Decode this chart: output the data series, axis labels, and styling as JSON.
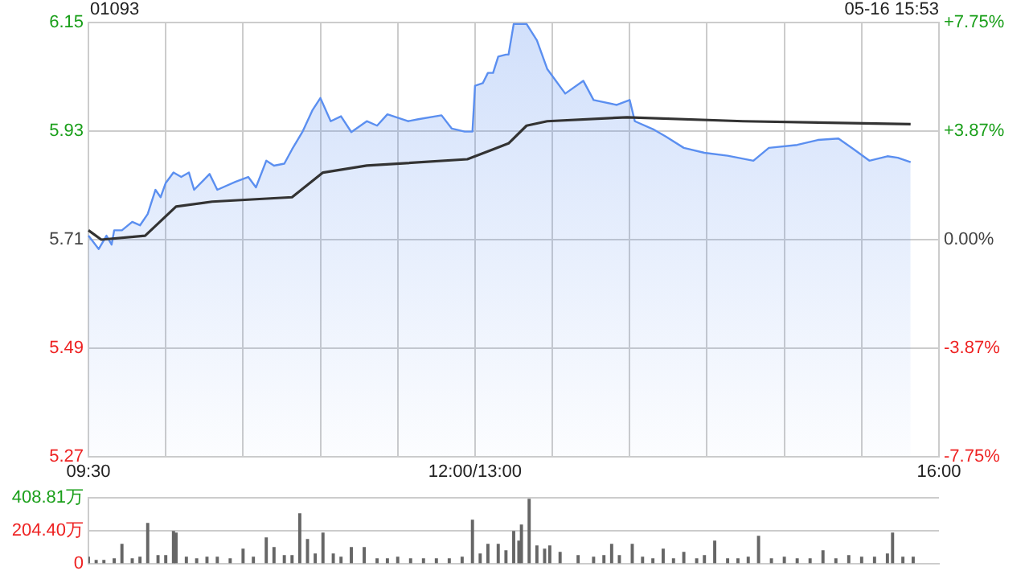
{
  "chart_data": [
    {
      "type": "area",
      "title": "01093",
      "subtitle": "05-16 15:53",
      "categories": [
        "09:30",
        null,
        null,
        null,
        null,
        null,
        null,
        null,
        null,
        null,
        null,
        null,
        null,
        null,
        null,
        null,
        null,
        null,
        null,
        null,
        null,
        null,
        null,
        null,
        null,
        null,
        null,
        null,
        null,
        null,
        null,
        null,
        null,
        null,
        null,
        null,
        null,
        null,
        null,
        null,
        null,
        null,
        null,
        null,
        null,
        null,
        null,
        null,
        null,
        null,
        null,
        null,
        null,
        null,
        null,
        null,
        null,
        null,
        null,
        null,
        null,
        null,
        null,
        null,
        null,
        null,
        null,
        null,
        null,
        null,
        null,
        null,
        null,
        null,
        null,
        null,
        null,
        null,
        null,
        null,
        null,
        null,
        null,
        null,
        null,
        null,
        null,
        null,
        null,
        null,
        null,
        null,
        null,
        null,
        null,
        null,
        null,
        null,
        null,
        null,
        null,
        null,
        null,
        null,
        null,
        null,
        null,
        null,
        null,
        null,
        null,
        null,
        null,
        null,
        null,
        null,
        null,
        null,
        null,
        null,
        null,
        null,
        null,
        null,
        null,
        null,
        null,
        null,
        null,
        null,
        null,
        null,
        null,
        null,
        null,
        null,
        null,
        null,
        null,
        null,
        null,
        null,
        null,
        null,
        null,
        null,
        null,
        null,
        null,
        null,
        "12:00/13:00",
        null,
        null,
        null,
        null,
        null,
        null,
        null,
        null,
        null,
        null,
        null,
        null,
        null,
        null,
        null,
        null,
        null,
        null,
        null,
        null,
        null,
        null,
        null,
        null,
        null,
        null,
        null,
        null,
        null,
        null,
        null,
        null,
        null,
        null,
        null,
        null,
        null,
        null,
        null,
        null,
        null,
        null,
        null,
        null,
        null,
        null,
        null,
        null,
        null,
        null,
        null,
        null,
        null,
        null,
        null,
        null,
        null,
        null,
        null,
        null,
        null,
        null,
        null,
        null,
        null,
        null,
        null,
        null,
        null,
        null,
        null,
        null,
        null,
        null,
        null,
        null,
        null,
        null,
        null,
        null,
        null,
        null,
        null,
        null,
        null,
        null,
        null,
        null,
        null,
        null,
        null,
        null,
        null,
        null,
        null,
        null,
        null,
        null,
        null,
        null,
        null,
        null,
        null,
        null,
        null,
        null,
        null,
        null,
        null,
        null,
        null,
        null,
        null,
        null,
        null,
        null,
        null,
        null,
        null,
        null,
        null,
        null,
        null,
        null,
        null,
        null,
        null,
        null,
        null,
        null,
        null,
        null,
        null,
        null,
        null,
        null,
        null,
        null,
        null,
        null,
        null,
        null,
        null,
        null,
        null,
        null,
        null,
        null,
        null,
        null,
        null,
        null,
        null,
        null,
        null,
        null,
        null,
        null,
        null,
        null,
        null,
        null,
        null,
        null,
        null,
        null,
        null,
        null,
        null,
        null,
        null,
        null,
        null,
        null,
        null,
        null,
        null,
        null,
        null,
        "16:00"
      ],
      "ylim": [
        5.27,
        6.15
      ],
      "yticks": [
        5.27,
        5.49,
        5.71,
        5.93,
        6.15
      ],
      "y2lim": [
        -7.75,
        7.75
      ],
      "y2ticks": [
        {
          "value": -7.75,
          "label": "-7.75%"
        },
        {
          "value": -3.87,
          "label": "-3.87%"
        },
        {
          "value": 0,
          "label": "0.00%"
        },
        {
          "value": 3.87,
          "label": "+3.87%"
        },
        {
          "value": 7.75,
          "label": "+7.75%"
        }
      ],
      "grid": true,
      "series": [
        {
          "color": "#5b8ff0",
          "values": [
            5.718,
            null,
            null,
            null,
            5.691,
            null,
            null,
            5.718,
            null,
            5.7,
            5.729,
            null,
            null,
            5.729,
            null,
            null,
            null,
            5.746,
            null,
            null,
            5.739,
            null,
            null,
            5.762,
            null,
            null,
            5.811,
            null,
            5.796,
            null,
            5.825,
            null,
            null,
            5.846,
            null,
            null,
            5.837,
            null,
            null,
            5.846,
            null,
            5.811,
            null,
            null,
            null,
            null,
            null,
            5.843,
            null,
            null,
            5.811,
            null,
            null,
            null,
            null,
            null,
            null,
            5.827,
            null,
            null,
            null,
            null,
            5.837,
            null,
            null,
            5.816,
            null,
            null,
            null,
            5.87,
            null,
            null,
            5.86,
            null,
            null,
            null,
            5.864,
            null,
            null,
            5.893,
            null,
            null,
            null,
            5.928,
            null,
            null,
            null,
            5.973,
            null,
            null,
            5.997,
            null,
            null,
            null,
            5.95,
            null,
            null,
            null,
            5.96,
            null,
            null,
            null,
            5.928,
            null,
            null,
            null,
            null,
            null,
            5.95,
            null,
            null,
            null,
            5.941,
            null,
            null,
            null,
            5.964,
            null,
            null,
            null,
            null,
            null,
            null,
            null,
            5.95,
            null,
            null,
            null,
            5.954,
            null,
            null,
            null,
            null,
            null,
            null,
            null,
            null,
            5.962,
            null,
            null,
            null,
            5.935,
            null,
            null,
            null,
            null,
            5.929,
            null,
            null,
            5.929,
            6.022,
            null,
            null,
            6.027,
            null,
            6.048,
            null,
            6.048,
            null,
            6.081,
            null,
            null,
            6.085,
            6.085,
            null,
            6.147,
            null,
            null,
            null,
            null,
            6.147,
            null,
            null,
            null,
            6.114,
            null,
            null,
            null,
            6.056,
            null,
            null,
            null,
            null,
            null,
            null,
            6.006,
            null,
            null,
            null,
            null,
            null,
            null,
            6.032,
            null,
            null,
            null,
            5.993,
            null,
            null,
            null,
            null,
            null,
            null,
            null,
            null,
            5.983,
            null,
            null,
            null,
            null,
            5.993,
            null,
            5.95,
            null,
            null,
            null,
            null,
            null,
            null,
            5.934,
            null,
            null,
            null,
            null,
            5.919,
            null,
            null,
            null,
            null,
            null,
            null,
            5.896,
            null,
            null,
            null,
            null,
            null,
            null,
            null,
            5.886,
            null,
            null,
            null,
            null,
            null,
            null,
            null,
            null,
            5.88,
            null,
            null,
            null,
            null,
            null,
            null,
            null,
            null,
            null,
            5.87,
            null,
            null,
            null,
            null,
            null,
            5.896,
            null,
            null,
            null,
            null,
            null,
            null,
            null,
            null,
            null,
            null,
            5.902,
            null,
            null,
            null,
            null,
            null,
            null,
            null,
            5.912,
            null,
            null,
            null,
            null,
            null,
            null,
            null,
            5.915,
            null,
            null,
            null,
            null,
            null,
            5.893,
            null,
            null,
            null,
            null,
            null,
            5.87,
            null,
            null,
            null,
            null,
            null,
            null,
            5.879,
            null,
            null,
            null,
            5.876,
            null,
            null,
            null,
            null,
            5.867,
            null,
            null,
            null,
            null,
            null,
            null,
            null,
            null,
            null,
            null,
            null
          ]
        },
        {
          "type": "line",
          "color": "#333333",
          "values": [
            5.729,
            null,
            null,
            null,
            null,
            5.71,
            null,
            null,
            null,
            null,
            null,
            null,
            null,
            null,
            null,
            null,
            null,
            null,
            null,
            null,
            null,
            null,
            5.718,
            null,
            null,
            null,
            null,
            null,
            null,
            null,
            null,
            null,
            null,
            null,
            5.777,
            null,
            null,
            null,
            null,
            null,
            null,
            null,
            null,
            null,
            null,
            null,
            null,
            null,
            5.787,
            null,
            null,
            null,
            null,
            null,
            null,
            null,
            null,
            null,
            null,
            null,
            null,
            null,
            null,
            null,
            null,
            null,
            null,
            null,
            null,
            null,
            null,
            null,
            null,
            null,
            null,
            null,
            null,
            null,
            null,
            5.796,
            null,
            null,
            null,
            null,
            null,
            null,
            null,
            null,
            null,
            null,
            null,
            5.846,
            null,
            null,
            null,
            null,
            null,
            null,
            null,
            null,
            null,
            null,
            null,
            null,
            null,
            null,
            null,
            null,
            5.86,
            null,
            null,
            null,
            null,
            null,
            null,
            null,
            null,
            null,
            null,
            null,
            null,
            null,
            null,
            null,
            null,
            null,
            null,
            null,
            null,
            null,
            null,
            null,
            null,
            null,
            null,
            null,
            null,
            null,
            null,
            null,
            null,
            null,
            null,
            null,
            null,
            null,
            null,
            5.873,
            null,
            null,
            null,
            null,
            null,
            null,
            null,
            null,
            null,
            5.893,
            null,
            null,
            null,
            null,
            null,
            5.905,
            null,
            null,
            null,
            null,
            null,
            null,
            5.941,
            null,
            null,
            null,
            null,
            null,
            null,
            null,
            5.95,
            null,
            null,
            null,
            null,
            null,
            null,
            null,
            null,
            null,
            null,
            null,
            null,
            null,
            null,
            null,
            null,
            null,
            null,
            null,
            null,
            null,
            null,
            null,
            null,
            null,
            null,
            null,
            null,
            null,
            null,
            5.958,
            null,
            null,
            null,
            null,
            null,
            null,
            null,
            null,
            null,
            null,
            null,
            null,
            null,
            null,
            null,
            null,
            null,
            null,
            null,
            null,
            null,
            null,
            null,
            null,
            null,
            null,
            null,
            null,
            null,
            null,
            null,
            null,
            null,
            null,
            null,
            null,
            null,
            null,
            null,
            null,
            null,
            null,
            null,
            null,
            5.95,
            null,
            null,
            null,
            null,
            null,
            null,
            null,
            null,
            null,
            null,
            null,
            null,
            null,
            null,
            null,
            null,
            null,
            null,
            null,
            null,
            null,
            null,
            null,
            null,
            null,
            null,
            null,
            null,
            null,
            null,
            null,
            null,
            null,
            null,
            null,
            null,
            null,
            null,
            null,
            null,
            null,
            null,
            null,
            null,
            null,
            null,
            null,
            null,
            null,
            null,
            null,
            null,
            null,
            null,
            null,
            null,
            null,
            null,
            null,
            null,
            null,
            null,
            null,
            null,
            5.944,
            null,
            null,
            null,
            null,
            null,
            null,
            null,
            null,
            null,
            null,
            null
          ]
        }
      ]
    },
    {
      "type": "bar",
      "color": "#666666",
      "ylim": [
        0,
        408.81
      ],
      "yticks": [
        0,
        {
          "value": 204.4,
          "label": "204.40万"
        },
        {
          "value": 408.81,
          "label": "408.81万"
        }
      ],
      "grid": "y",
      "tick_labels": "y",
      "categories": [
        null,
        null,
        null,
        null,
        null,
        null,
        null,
        null,
        null,
        null,
        null,
        null,
        null,
        null,
        null,
        null,
        null,
        null,
        null,
        null,
        null,
        null,
        null,
        null,
        null,
        null,
        null,
        null,
        null,
        null,
        null,
        null,
        null,
        null,
        null,
        null,
        null,
        null,
        null,
        null,
        null,
        null,
        null,
        null,
        null,
        null,
        null,
        null,
        null,
        null,
        null,
        null,
        null,
        null,
        null,
        null,
        null,
        null,
        null,
        null,
        null,
        null,
        null,
        null,
        null,
        null,
        null,
        null,
        null,
        null,
        null,
        null,
        null,
        null,
        null,
        null,
        null,
        null,
        null,
        null,
        null,
        null,
        null,
        null,
        null,
        null,
        null,
        null,
        null,
        null,
        null,
        null,
        null,
        null,
        null,
        null,
        null,
        null,
        null,
        null,
        null,
        null,
        null,
        null,
        null,
        null,
        null,
        null,
        null,
        null,
        null,
        null,
        null,
        null,
        null,
        null,
        null,
        null,
        null,
        null,
        null,
        null,
        null,
        null,
        null,
        null,
        null,
        null,
        null,
        null,
        null,
        null,
        null,
        null,
        null,
        null,
        null,
        null,
        null,
        null,
        null,
        null,
        null,
        null,
        null,
        null,
        null,
        null,
        null,
        null,
        null,
        null,
        null,
        null,
        null,
        null,
        null,
        null,
        null,
        null,
        null,
        null,
        null,
        null,
        null,
        null,
        null,
        null,
        null,
        null,
        null,
        null,
        null,
        null,
        null,
        null,
        null,
        null,
        null,
        null,
        null,
        null,
        null,
        null,
        null,
        null,
        null,
        null,
        null,
        null,
        null,
        null,
        null,
        null,
        null,
        null,
        null,
        null,
        null,
        null,
        null,
        null,
        null,
        null,
        null,
        null,
        null,
        null,
        null,
        null,
        null,
        null,
        null,
        null,
        null,
        null,
        null,
        null,
        null,
        null,
        null,
        null,
        null,
        null,
        null,
        null,
        null,
        null,
        null,
        null,
        null,
        null,
        null,
        null,
        null,
        null,
        null,
        null,
        null,
        null,
        null,
        null,
        null,
        null,
        null,
        null,
        null,
        null,
        null,
        null,
        null,
        null,
        null,
        null,
        null,
        null,
        null,
        null,
        null,
        null,
        null,
        null,
        null,
        null,
        null,
        null,
        null,
        null,
        null,
        null,
        null,
        null,
        null,
        null,
        null,
        null,
        null,
        null,
        null,
        null,
        null,
        null,
        null,
        null,
        null,
        null,
        null,
        null,
        null,
        null,
        null,
        null,
        null,
        null,
        null,
        null,
        null,
        null,
        null,
        null,
        null,
        null,
        null,
        null,
        null,
        null,
        null,
        null,
        null,
        null,
        null,
        null,
        null,
        null,
        null,
        null,
        null,
        null,
        null,
        null,
        null,
        null,
        null,
        null,
        null,
        null,
        null,
        null,
        null,
        null,
        null
      ],
      "values": [
        40,
        null,
        null,
        20,
        null,
        null,
        20,
        null,
        null,
        null,
        30,
        null,
        null,
        120,
        null,
        null,
        null,
        30,
        null,
        null,
        40,
        null,
        null,
        250,
        null,
        null,
        null,
        50,
        null,
        null,
        50,
        null,
        null,
        200,
        190,
        null,
        null,
        null,
        40,
        null,
        null,
        null,
        30,
        null,
        null,
        null,
        40,
        null,
        null,
        null,
        40,
        null,
        null,
        null,
        null,
        30,
        null,
        null,
        null,
        null,
        90,
        null,
        null,
        null,
        40,
        null,
        null,
        null,
        null,
        160,
        null,
        null,
        100,
        null,
        null,
        null,
        50,
        null,
        null,
        50,
        null,
        null,
        310,
        null,
        null,
        150,
        null,
        null,
        60,
        null,
        null,
        190,
        null,
        null,
        null,
        60,
        null,
        null,
        40,
        null,
        null,
        null,
        100,
        null,
        null,
        null,
        null,
        100,
        null,
        null,
        null,
        null,
        30,
        null,
        null,
        null,
        30,
        null,
        null,
        null,
        40,
        null,
        null,
        null,
        null,
        30,
        null,
        null,
        null,
        null,
        30,
        null,
        null,
        null,
        null,
        30,
        null,
        null,
        null,
        null,
        30,
        null,
        null,
        null,
        null,
        40,
        null,
        null,
        null,
        270,
        null,
        null,
        60,
        null,
        null,
        120,
        null,
        null,
        null,
        120,
        null,
        null,
        80,
        null,
        null,
        200,
        null,
        140,
        240,
        null,
        null,
        400,
        null,
        null,
        110,
        null,
        null,
        90,
        null,
        110,
        null,
        null,
        null,
        70,
        null,
        null,
        null,
        null,
        null,
        null,
        50,
        null,
        null,
        null,
        null,
        null,
        40,
        null,
        null,
        null,
        50,
        null,
        null,
        120,
        null,
        null,
        50,
        null,
        null,
        null,
        null,
        120,
        null,
        null,
        null,
        40,
        null,
        null,
        null,
        30,
        null,
        null,
        null,
        90,
        null,
        null,
        null,
        30,
        null,
        null,
        null,
        70,
        null,
        null,
        null,
        null,
        30,
        null,
        null,
        50,
        null,
        null,
        null,
        140,
        null,
        null,
        null,
        null,
        30,
        null,
        null,
        null,
        30,
        null,
        null,
        null,
        40,
        null,
        null,
        null,
        170,
        null,
        null,
        null,
        null,
        30,
        null,
        null,
        null,
        null,
        40,
        null,
        null,
        null,
        null,
        30,
        null,
        null,
        null,
        null,
        30,
        null,
        null,
        null,
        null,
        80,
        null,
        null,
        null,
        null,
        30,
        null,
        null,
        null,
        null,
        50,
        null,
        null,
        null,
        null,
        40,
        null,
        null,
        null,
        null,
        40,
        null,
        null,
        null,
        null,
        60,
        null,
        190,
        null,
        null,
        null,
        40,
        null,
        null,
        null,
        40,
        null,
        null,
        null,
        null,
        null,
        null,
        null,
        null,
        null,
        null
      ]
    }
  ]
}
